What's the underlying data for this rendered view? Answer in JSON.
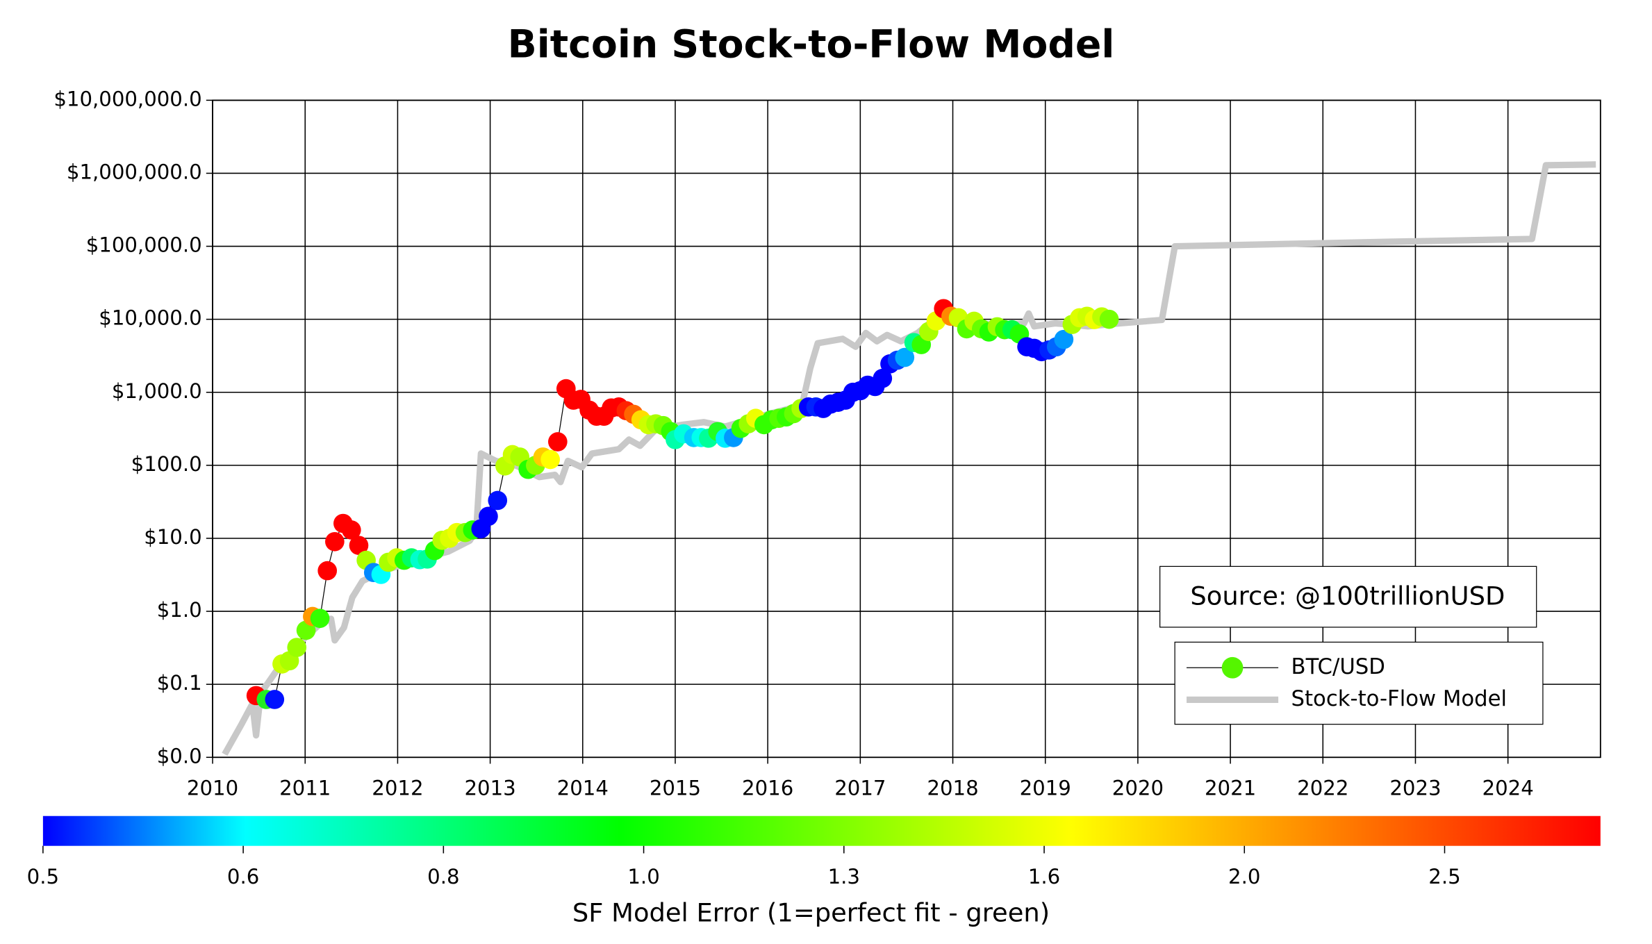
{
  "chart_data": {
    "type": "scatter",
    "title": "Bitcoin Stock-to-Flow Model",
    "log_scale_y": true,
    "grid": true,
    "legend_position": "lower right",
    "annotation": "Source: @100trillionUSD",
    "xlim": [
      2010,
      2025
    ],
    "xticks": [
      2010,
      2011,
      2012,
      2013,
      2014,
      2015,
      2016,
      2017,
      2018,
      2019,
      2020,
      2021,
      2022,
      2023,
      2024
    ],
    "ylim": [
      0.01,
      10000000
    ],
    "yticks": [
      {
        "value": 10000000,
        "label": "$10,000,000.0"
      },
      {
        "value": 1000000,
        "label": "$1,000,000.0"
      },
      {
        "value": 100000,
        "label": "$100,000.0"
      },
      {
        "value": 10000,
        "label": "$10,000.0"
      },
      {
        "value": 1000,
        "label": "$1,000.0"
      },
      {
        "value": 100,
        "label": "$100.0"
      },
      {
        "value": 10,
        "label": "$10.0"
      },
      {
        "value": 1,
        "label": "$1.0"
      },
      {
        "value": 0.1,
        "label": "$0.1"
      },
      {
        "value": 0.01,
        "label": "$0.0"
      }
    ],
    "series": [
      {
        "name": "BTC/USD",
        "style": "points",
        "color": "#55f500",
        "line_color": "#000000",
        "x": [
          2010.47,
          2010.58,
          2010.67,
          2010.75,
          2010.83,
          2010.91,
          2011.01,
          2011.08,
          2011.16,
          2011.24,
          2011.32,
          2011.41,
          2011.5,
          2011.58,
          2011.66,
          2011.74,
          2011.82,
          2011.9,
          2011.99,
          2012.07,
          2012.15,
          2012.24,
          2012.32,
          2012.4,
          2012.48,
          2012.56,
          2012.64,
          2012.73,
          2012.81,
          2012.9,
          2012.98,
          2013.08,
          2013.16,
          2013.24,
          2013.32,
          2013.41,
          2013.49,
          2013.57,
          2013.65,
          2013.73,
          2013.82,
          2013.9,
          2013.98,
          2014.07,
          2014.15,
          2014.23,
          2014.31,
          2014.39,
          2014.47,
          2014.55,
          2014.63,
          2014.71,
          2014.79,
          2014.87,
          2014.95,
          2015.0,
          2015.09,
          2015.2,
          2015.28,
          2015.36,
          2015.46,
          2015.54,
          2015.63,
          2015.71,
          2015.79,
          2015.87,
          2015.96,
          2016.04,
          2016.12,
          2016.2,
          2016.28,
          2016.36,
          2016.44,
          2016.52,
          2016.6,
          2016.68,
          2016.76,
          2016.84,
          2016.92,
          2017.0,
          2017.08,
          2017.16,
          2017.24,
          2017.32,
          2017.4,
          2017.48,
          2017.58,
          2017.66,
          2017.74,
          2017.82,
          2017.9,
          2017.98,
          2018.06,
          2018.15,
          2018.23,
          2018.31,
          2018.39,
          2018.48,
          2018.56,
          2018.64,
          2018.72,
          2018.8,
          2018.88,
          2018.96,
          2019.04,
          2019.12,
          2019.2,
          2019.29,
          2019.37,
          2019.45,
          2019.53,
          2019.61,
          2019.69
        ],
        "values": [
          0.07,
          0.062,
          0.062,
          0.19,
          0.21,
          0.32,
          0.55,
          0.85,
          0.8,
          3.6,
          9,
          16,
          13,
          8,
          5,
          3.4,
          3.2,
          4.7,
          5.4,
          5,
          5.4,
          5.1,
          5.2,
          6.8,
          9.4,
          10,
          12,
          12,
          13,
          13.5,
          20,
          33,
          98,
          140,
          130,
          88,
          100,
          130,
          120,
          210,
          1120,
          780,
          800,
          570,
          470,
          470,
          610,
          630,
          560,
          500,
          420,
          360,
          370,
          350,
          290,
          225,
          270,
          240,
          240,
          235,
          290,
          235,
          240,
          320,
          370,
          440,
          360,
          420,
          440,
          460,
          510,
          600,
          630,
          630,
          600,
          690,
          730,
          780,
          1000,
          1050,
          1250,
          1200,
          1550,
          2450,
          2750,
          3000,
          4800,
          4500,
          6800,
          9500,
          14000,
          11000,
          10500,
          7400,
          9400,
          7400,
          6700,
          7900,
          7200,
          7200,
          6300,
          4200,
          4000,
          3600,
          3800,
          4200,
          5300,
          8500,
          10500,
          11000,
          9900,
          10800,
          10000
        ],
        "colors": [
          "#ff0000",
          "#22ee22",
          "#0011ff",
          "#c8ff00",
          "#aaff00",
          "#99ff00",
          "#66ff00",
          "#ff9900",
          "#33ff00",
          "#ff0000",
          "#ff0000",
          "#ff0000",
          "#ff0000",
          "#ff0000",
          "#aaff00",
          "#0088ff",
          "#00ffff",
          "#aaff00",
          "#ccff00",
          "#22ff00",
          "#00ff66",
          "#00ffcc",
          "#00ff99",
          "#22ff00",
          "#bbff00",
          "#ddff00",
          "#eeff00",
          "#88ff00",
          "#22ff00",
          "#0000ff",
          "#0000ff",
          "#0011ff",
          "#bbff00",
          "#ccff00",
          "#aaff00",
          "#22ff00",
          "#88ff00",
          "#ffcc00",
          "#ffff00",
          "#ff0000",
          "#ff0000",
          "#ff0000",
          "#ff0000",
          "#ff0000",
          "#ff0000",
          "#ff0000",
          "#ff0000",
          "#ff0000",
          "#ff2200",
          "#ff6600",
          "#ffdd00",
          "#ccff00",
          "#aaff00",
          "#77ff00",
          "#33ff00",
          "#00ffaa",
          "#00ffdd",
          "#00ccff",
          "#00ffee",
          "#00ff99",
          "#22ff22",
          "#00eeff",
          "#0099ff",
          "#33ff00",
          "#99ff00",
          "#eeff00",
          "#33ff00",
          "#33ff00",
          "#55ff00",
          "#33ff00",
          "#66ff00",
          "#aaff00",
          "#0000ff",
          "#0022ff",
          "#0000ff",
          "#0000ff",
          "#0000ff",
          "#0000ff",
          "#0000ff",
          "#0000ff",
          "#0000ff",
          "#0000ff",
          "#0000ff",
          "#0000ff",
          "#0044ff",
          "#00aaff",
          "#00ff88",
          "#33ff00",
          "#aaff00",
          "#eeff00",
          "#ff0000",
          "#ff8800",
          "#ccff00",
          "#55ff00",
          "#bbff00",
          "#66ff00",
          "#22ff00",
          "#99ff00",
          "#33ff00",
          "#00ff44",
          "#22ff00",
          "#0000ff",
          "#0000ff",
          "#0000ff",
          "#0022ff",
          "#0066ff",
          "#0099ff",
          "#aaff00",
          "#ddff00",
          "#ccff00",
          "#eeff00",
          "#bbff00",
          "#77ff00"
        ]
      },
      {
        "name": "Stock-to-Flow Model",
        "style": "line",
        "color": "#c8c8c8",
        "x": [
          2010.13,
          2010.31,
          2010.43,
          2010.47,
          2010.52,
          2010.7,
          2010.93,
          2011.16,
          2011.28,
          2011.32,
          2011.42,
          2011.51,
          2011.62,
          2011.85,
          2012.2,
          2012.55,
          2012.78,
          2012.85,
          2012.9,
          2013.06,
          2013.29,
          2013.53,
          2013.7,
          2013.76,
          2013.84,
          2013.99,
          2014.1,
          2014.39,
          2014.5,
          2014.62,
          2014.79,
          2015.08,
          2015.31,
          2015.54,
          2016.0,
          2016.37,
          2016.46,
          2016.54,
          2016.81,
          2016.95,
          2017.06,
          2017.18,
          2017.29,
          2017.44,
          2017.62,
          2017.82,
          2017.9,
          2018.02,
          2018.13,
          2018.54,
          2018.77,
          2018.82,
          2018.88,
          2019.11,
          2019.46,
          2019.8,
          2020.26,
          2020.36,
          2020.4,
          2022.68,
          2024.26,
          2024.41,
          2024.95
        ],
        "values": [
          0.011,
          0.028,
          0.054,
          0.02,
          0.075,
          0.16,
          0.36,
          0.67,
          0.79,
          0.4,
          0.6,
          1.55,
          2.6,
          3.6,
          5,
          6.6,
          9.3,
          13,
          145,
          115,
          98,
          69,
          74,
          59,
          115,
          94,
          145,
          166,
          225,
          185,
          310,
          360,
          390,
          340,
          500,
          660,
          2150,
          4700,
          5400,
          4200,
          6500,
          5000,
          6100,
          5000,
          6500,
          10500,
          11000,
          11000,
          9100,
          8300,
          8800,
          12000,
          8000,
          8800,
          8000,
          8800,
          9800,
          52000,
          100000,
          115000,
          126000,
          1290000,
          1320000
        ]
      }
    ],
    "colorbar": {
      "label": "SF Model Error (1=perfect fit - green)",
      "colors": [
        "#0000ff",
        "#00ffff",
        "#00ff00",
        "#ffff00",
        "#ff0000"
      ],
      "ticks": [
        0.5,
        0.6,
        0.8,
        {
          "value": 1,
          "label": "1.0"
        },
        1.3,
        1.6,
        {
          "value": 2,
          "label": "2.0"
        },
        2.5
      ]
    }
  }
}
